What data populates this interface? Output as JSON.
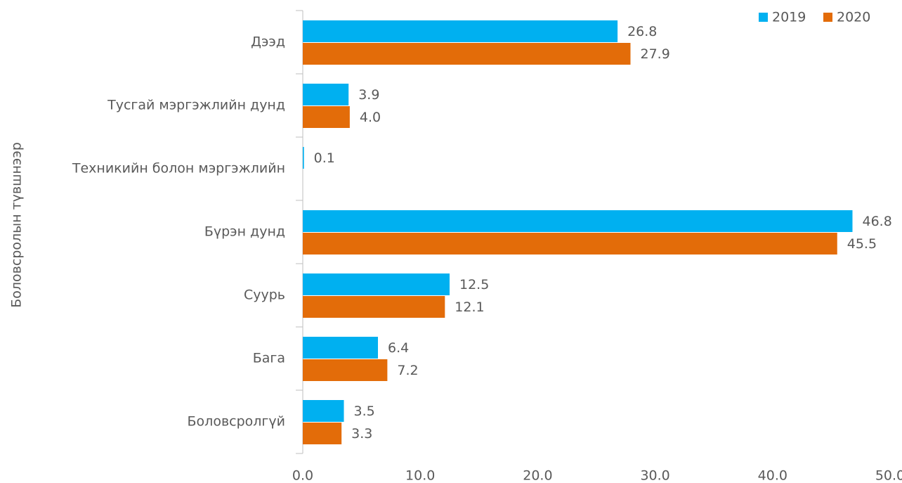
{
  "chart_data": {
    "type": "barh",
    "y_axis_label": "Боловсролын түвшнээр",
    "categories": [
      "Дээд",
      "Тусгай мэргэжлийн дунд",
      "Техникийн болон мэргэжлийн",
      "Бүрэн дунд",
      "Суурь",
      "Бага",
      "Боловсролгүй"
    ],
    "series": [
      {
        "name": "2019",
        "color": "#00b0f0",
        "values": [
          26.8,
          3.9,
          0.1,
          46.8,
          12.5,
          6.4,
          3.5
        ],
        "value_labels": [
          "26.8",
          "3.9",
          "0.1",
          "46.8",
          "12.5",
          "6.4",
          "3.5"
        ]
      },
      {
        "name": "2020",
        "color": "#e36c09",
        "values": [
          27.9,
          4.0,
          null,
          45.5,
          12.1,
          7.2,
          3.3
        ],
        "value_labels": [
          "27.9",
          "4.0",
          null,
          "45.5",
          "12.1",
          "7.2",
          "3.3"
        ]
      }
    ],
    "xlim": [
      0,
      50
    ],
    "xticks": [
      {
        "value": 0,
        "label": "0.0"
      },
      {
        "value": 10,
        "label": "10.0"
      },
      {
        "value": 20,
        "label": "20.0"
      },
      {
        "value": 30,
        "label": "30.0"
      },
      {
        "value": 40,
        "label": "40.0"
      },
      {
        "value": 50,
        "label": "50.0"
      }
    ],
    "grid": false,
    "legend": "top-right"
  }
}
